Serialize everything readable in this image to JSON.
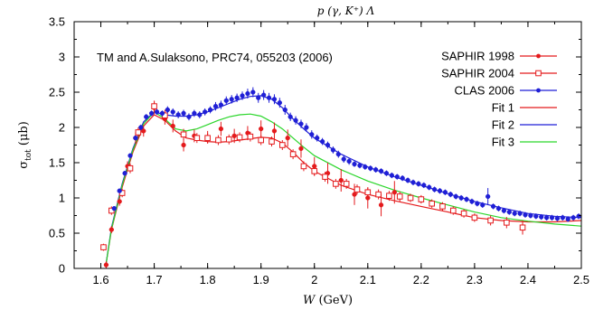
{
  "chart_data": {
    "type": "scatter",
    "title": "p (γ, K⁺) Λ",
    "annotation": "TM and A.Sulaksono, PRC74, 055203 (2006)",
    "xlabel": "W (GeV)",
    "ylabel": "σtot (μb)",
    "xlim": [
      1.55,
      2.5
    ],
    "ylim": [
      0,
      3.5
    ],
    "xticks": [
      "1.6",
      "1.7",
      "1.8",
      "1.9",
      "2",
      "2.1",
      "2.2",
      "2.3",
      "2.4",
      "2.5"
    ],
    "yticks": [
      "0",
      "0.5",
      "1",
      "1.5",
      "2",
      "2.5",
      "3",
      "3.5"
    ],
    "grid": false,
    "legend_position": "top-right",
    "series": [
      {
        "name": "SAPHIR 1998",
        "kind": "points",
        "marker": "filled-circle",
        "color": "#e41a1c",
        "x": [
          1.61,
          1.62,
          1.635,
          1.65,
          1.665,
          1.68,
          1.7,
          1.72,
          1.735,
          1.755,
          1.775,
          1.8,
          1.825,
          1.85,
          1.875,
          1.9,
          1.925,
          1.95,
          1.975,
          2.0,
          2.025,
          2.05,
          2.075,
          2.1,
          2.125,
          2.15
        ],
        "y": [
          0.05,
          0.55,
          0.95,
          1.45,
          1.85,
          1.95,
          2.28,
          2.12,
          2.02,
          1.75,
          1.88,
          1.86,
          1.98,
          1.88,
          1.92,
          1.98,
          1.95,
          1.85,
          1.7,
          1.45,
          1.35,
          1.25,
          1.05,
          1.0,
          0.9,
          1.08
        ],
        "err": [
          0.05,
          0.05,
          0.06,
          0.07,
          0.08,
          0.08,
          0.09,
          0.08,
          0.09,
          0.09,
          0.09,
          0.09,
          0.1,
          0.1,
          0.1,
          0.12,
          0.12,
          0.12,
          0.13,
          0.13,
          0.15,
          0.16,
          0.15,
          0.15,
          0.16,
          0.16
        ]
      },
      {
        "name": "SAPHIR 2004",
        "kind": "points",
        "marker": "open-square",
        "color": "#e41a1c",
        "x": [
          1.605,
          1.62,
          1.64,
          1.655,
          1.67,
          1.7,
          1.72,
          1.755,
          1.78,
          1.8,
          1.82,
          1.84,
          1.86,
          1.88,
          1.9,
          1.92,
          1.94,
          1.96,
          1.98,
          2.0,
          2.02,
          2.04,
          2.06,
          2.08,
          2.1,
          2.12,
          2.14,
          2.16,
          2.18,
          2.2,
          2.22,
          2.24,
          2.26,
          2.28,
          2.3,
          2.33,
          2.36,
          2.39
        ],
        "y": [
          0.3,
          0.82,
          1.07,
          1.42,
          1.93,
          2.3,
          2.17,
          1.9,
          1.85,
          1.85,
          1.82,
          1.83,
          1.86,
          1.87,
          1.82,
          1.8,
          1.75,
          1.62,
          1.45,
          1.38,
          1.3,
          1.2,
          1.2,
          1.12,
          1.08,
          1.05,
          1.03,
          1.02,
          1.0,
          0.98,
          0.92,
          0.88,
          0.82,
          0.78,
          0.72,
          0.68,
          0.65,
          0.58
        ],
        "err": [
          0.05,
          0.06,
          0.06,
          0.07,
          0.07,
          0.08,
          0.08,
          0.08,
          0.07,
          0.07,
          0.07,
          0.07,
          0.07,
          0.07,
          0.07,
          0.07,
          0.07,
          0.07,
          0.07,
          0.07,
          0.07,
          0.07,
          0.07,
          0.07,
          0.07,
          0.07,
          0.07,
          0.07,
          0.06,
          0.06,
          0.06,
          0.06,
          0.06,
          0.06,
          0.06,
          0.07,
          0.08,
          0.1
        ]
      },
      {
        "name": "CLAS 2006",
        "kind": "points",
        "marker": "filled-circle",
        "color": "#1f1fd6",
        "x": [
          1.625,
          1.635,
          1.645,
          1.655,
          1.665,
          1.675,
          1.685,
          1.695,
          1.705,
          1.715,
          1.725,
          1.735,
          1.745,
          1.755,
          1.765,
          1.775,
          1.785,
          1.795,
          1.805,
          1.815,
          1.825,
          1.835,
          1.845,
          1.855,
          1.865,
          1.875,
          1.885,
          1.895,
          1.905,
          1.915,
          1.925,
          1.935,
          1.945,
          1.955,
          1.965,
          1.975,
          1.985,
          1.995,
          2.005,
          2.015,
          2.025,
          2.035,
          2.045,
          2.055,
          2.065,
          2.075,
          2.085,
          2.095,
          2.105,
          2.115,
          2.125,
          2.135,
          2.145,
          2.155,
          2.165,
          2.175,
          2.185,
          2.195,
          2.205,
          2.215,
          2.225,
          2.235,
          2.245,
          2.255,
          2.265,
          2.275,
          2.285,
          2.295,
          2.305,
          2.315,
          2.325,
          2.335,
          2.345,
          2.355,
          2.365,
          2.375,
          2.385,
          2.395,
          2.405,
          2.415,
          2.425,
          2.435,
          2.445,
          2.455,
          2.465,
          2.475,
          2.485,
          2.495
        ],
        "y": [
          0.85,
          1.1,
          1.35,
          1.6,
          1.85,
          2.0,
          2.15,
          2.2,
          2.22,
          2.2,
          2.25,
          2.22,
          2.18,
          2.2,
          2.15,
          2.2,
          2.18,
          2.22,
          2.25,
          2.3,
          2.32,
          2.38,
          2.4,
          2.42,
          2.45,
          2.48,
          2.5,
          2.42,
          2.46,
          2.42,
          2.4,
          2.35,
          2.25,
          2.15,
          2.1,
          2.05,
          2.0,
          1.9,
          1.85,
          1.8,
          1.75,
          1.68,
          1.62,
          1.55,
          1.52,
          1.48,
          1.46,
          1.44,
          1.42,
          1.4,
          1.38,
          1.35,
          1.32,
          1.3,
          1.28,
          1.25,
          1.22,
          1.2,
          1.18,
          1.15,
          1.12,
          1.1,
          1.08,
          1.05,
          1.02,
          1.0,
          0.98,
          0.95,
          0.92,
          0.9,
          1.02,
          0.88,
          0.85,
          0.82,
          0.8,
          0.78,
          0.78,
          0.76,
          0.75,
          0.74,
          0.73,
          0.72,
          0.72,
          0.71,
          0.72,
          0.7,
          0.72,
          0.74
        ],
        "err": [
          0.03,
          0.03,
          0.03,
          0.03,
          0.03,
          0.04,
          0.04,
          0.04,
          0.04,
          0.04,
          0.05,
          0.05,
          0.05,
          0.05,
          0.05,
          0.05,
          0.05,
          0.05,
          0.05,
          0.06,
          0.06,
          0.06,
          0.06,
          0.06,
          0.06,
          0.07,
          0.07,
          0.07,
          0.07,
          0.07,
          0.07,
          0.07,
          0.07,
          0.06,
          0.06,
          0.06,
          0.06,
          0.06,
          0.05,
          0.05,
          0.05,
          0.05,
          0.05,
          0.05,
          0.05,
          0.04,
          0.04,
          0.04,
          0.04,
          0.04,
          0.04,
          0.04,
          0.04,
          0.04,
          0.04,
          0.04,
          0.04,
          0.04,
          0.04,
          0.04,
          0.04,
          0.04,
          0.04,
          0.04,
          0.04,
          0.04,
          0.04,
          0.04,
          0.04,
          0.04,
          0.12,
          0.04,
          0.04,
          0.04,
          0.04,
          0.04,
          0.04,
          0.04,
          0.04,
          0.04,
          0.04,
          0.04,
          0.04,
          0.04,
          0.04,
          0.04,
          0.04,
          0.04
        ]
      },
      {
        "name": "Fit 1",
        "kind": "line",
        "color": "#e41a1c",
        "x": [
          1.609,
          1.62,
          1.64,
          1.66,
          1.68,
          1.7,
          1.72,
          1.74,
          1.76,
          1.78,
          1.8,
          1.82,
          1.84,
          1.86,
          1.88,
          1.9,
          1.92,
          1.94,
          1.96,
          1.98,
          2.0,
          2.05,
          2.1,
          2.15,
          2.2,
          2.25,
          2.3,
          2.35,
          2.4,
          2.45,
          2.5
        ],
        "y": [
          0.02,
          0.55,
          1.15,
          1.65,
          2.02,
          2.18,
          2.1,
          1.95,
          1.85,
          1.82,
          1.8,
          1.79,
          1.8,
          1.82,
          1.84,
          1.86,
          1.85,
          1.78,
          1.65,
          1.5,
          1.38,
          1.18,
          1.05,
          0.96,
          0.88,
          0.8,
          0.72,
          0.68,
          0.66,
          0.66,
          0.68
        ]
      },
      {
        "name": "Fit 2",
        "kind": "line",
        "color": "#1f1fd6",
        "x": [
          1.609,
          1.62,
          1.64,
          1.66,
          1.68,
          1.7,
          1.72,
          1.74,
          1.76,
          1.78,
          1.8,
          1.82,
          1.84,
          1.86,
          1.88,
          1.9,
          1.92,
          1.94,
          1.96,
          1.98,
          2.0,
          2.05,
          2.1,
          2.15,
          2.2,
          2.25,
          2.3,
          2.35,
          2.4,
          2.45,
          2.5
        ],
        "y": [
          0.02,
          0.58,
          1.2,
          1.7,
          2.08,
          2.22,
          2.18,
          2.16,
          2.16,
          2.18,
          2.22,
          2.28,
          2.34,
          2.4,
          2.44,
          2.45,
          2.4,
          2.28,
          2.12,
          1.98,
          1.85,
          1.62,
          1.44,
          1.3,
          1.18,
          1.06,
          0.95,
          0.86,
          0.78,
          0.74,
          0.72
        ]
      },
      {
        "name": "Fit 3",
        "kind": "line",
        "color": "#2bd62b",
        "x": [
          1.609,
          1.62,
          1.64,
          1.66,
          1.68,
          1.7,
          1.72,
          1.74,
          1.76,
          1.78,
          1.8,
          1.82,
          1.84,
          1.86,
          1.88,
          1.9,
          1.92,
          1.94,
          1.96,
          1.98,
          2.0,
          2.05,
          2.1,
          2.15,
          2.2,
          2.25,
          2.3,
          2.35,
          2.4,
          2.45,
          2.5
        ],
        "y": [
          0.02,
          0.56,
          1.18,
          1.68,
          2.05,
          2.22,
          2.12,
          1.98,
          1.95,
          1.98,
          2.04,
          2.1,
          2.15,
          2.18,
          2.19,
          2.16,
          2.08,
          1.98,
          1.85,
          1.72,
          1.6,
          1.4,
          1.24,
          1.11,
          1.0,
          0.9,
          0.8,
          0.72,
          0.67,
          0.63,
          0.6
        ]
      }
    ]
  }
}
